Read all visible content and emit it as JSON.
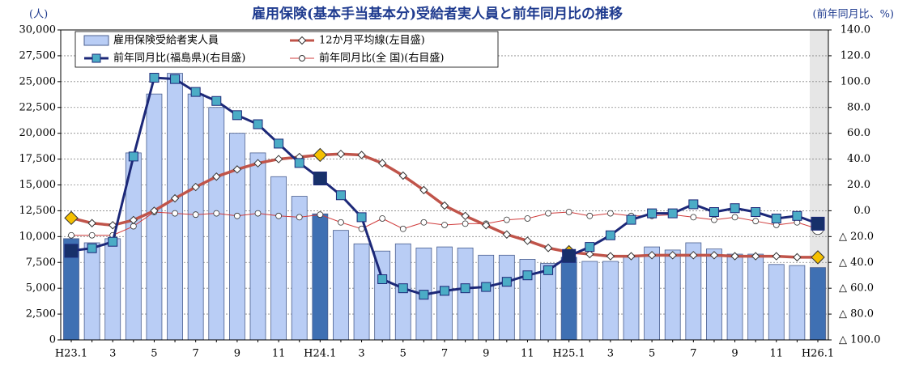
{
  "chart_data": {
    "type": "combo",
    "title": "雇用保険(基本手当基本分)受給者実人員と前年同月比の推移",
    "left_unit": "(人)",
    "right_unit": "(前年同月比、%)",
    "categories": [
      "H23.1",
      null,
      "3",
      null,
      "5",
      null,
      "7",
      null,
      "9",
      null,
      "11",
      null,
      "H24.1",
      null,
      "3",
      null,
      "5",
      null,
      "7",
      null,
      "9",
      null,
      "11",
      null,
      "H25.1",
      null,
      "3",
      null,
      "5",
      null,
      "7",
      null,
      "9",
      null,
      "11",
      null,
      "H26.1"
    ],
    "series": [
      {
        "name": "雇用保険受給者実人員",
        "kind": "bar",
        "axis": "y",
        "color": "#b9cdf5",
        "highlight_color": "#3f70b3",
        "values": [
          9800,
          9400,
          9800,
          18100,
          23800,
          25800,
          23800,
          22500,
          20000,
          18100,
          15800,
          13900,
          12200,
          10600,
          9300,
          8600,
          9300,
          8900,
          9000,
          8900,
          8200,
          8200,
          7800,
          7400,
          8000,
          7600,
          7600,
          8100,
          9000,
          8700,
          9400,
          8800,
          8300,
          8300,
          7300,
          7200,
          7000
        ]
      },
      {
        "name": "12か月平均線(左目盛)",
        "kind": "line",
        "marker": "diamond",
        "axis": "y",
        "color": "#c0544a",
        "marker_color": "#ffffff",
        "highlight_color": "#f5c000",
        "values": [
          11800,
          11300,
          11100,
          11600,
          12500,
          13700,
          14800,
          15800,
          16500,
          17100,
          17500,
          17700,
          17900,
          18000,
          17900,
          17100,
          15900,
          14500,
          13000,
          12000,
          11100,
          10200,
          9600,
          8900,
          8500,
          8300,
          8100,
          8100,
          8200,
          8200,
          8200,
          8200,
          8100,
          8100,
          8100,
          8000,
          8000
        ]
      },
      {
        "name": "前年同月比(福島県)(右目盛)",
        "kind": "line",
        "marker": "square",
        "axis": "y2",
        "color": "#1c2878",
        "marker_color": "#4bacc6",
        "highlight_color": "#17306a",
        "values": [
          -31,
          -29,
          -24,
          42,
          103,
          102,
          92,
          85,
          74,
          67,
          52,
          37,
          25,
          12,
          -5,
          -53,
          -60,
          -65,
          -62,
          -60,
          -59,
          -55,
          -50,
          -46,
          -35,
          -28,
          -19,
          -7,
          -2,
          -2,
          5,
          -1,
          2,
          -1,
          -6,
          -4,
          -10
        ]
      },
      {
        "name": "前年同月比(全 国)(右目盛)",
        "kind": "line",
        "marker": "circle",
        "axis": "y2",
        "color": "#d03c3c",
        "marker_color": "#ffffff",
        "highlight_color": "#ffffff",
        "values": [
          -19,
          -19,
          -19,
          -12,
          -1,
          -2,
          -3,
          -2,
          -4,
          -2,
          -4,
          -5,
          -3,
          -9,
          -14,
          -6,
          -14,
          -9,
          -11,
          -10,
          -10,
          -7,
          -6,
          -2,
          -1,
          -4,
          -2,
          -4,
          -4,
          -3,
          -5,
          -7,
          -5,
          -8,
          -11,
          -9,
          -14
        ]
      }
    ],
    "ylim": [
      0,
      30000
    ],
    "yticks": [
      0,
      {
        "value": 2500,
        "label": "2,500"
      },
      {
        "value": 5000,
        "label": "5,000"
      },
      {
        "value": 7500,
        "label": "7,500"
      },
      {
        "value": 10000,
        "label": "10,000"
      },
      {
        "value": 12500,
        "label": "12,500"
      },
      {
        "value": 15000,
        "label": "15,000"
      },
      {
        "value": 17500,
        "label": "17,500"
      },
      {
        "value": 20000,
        "label": "20,000"
      },
      {
        "value": 22500,
        "label": "22,500"
      },
      {
        "value": 25000,
        "label": "25,000"
      },
      {
        "value": 27500,
        "label": "27,500"
      },
      {
        "value": 30000,
        "label": "30,000"
      }
    ],
    "y2lim": [
      -100,
      140
    ],
    "y2ticks": [
      {
        "value": -100,
        "label": "△ 100.0"
      },
      {
        "value": -80,
        "label": "△ 80.0"
      },
      {
        "value": -60,
        "label": "△ 60.0"
      },
      {
        "value": -40,
        "label": "△ 40.0"
      },
      {
        "value": -20,
        "label": "△ 20.0"
      },
      {
        "value": 0,
        "label": "0.0"
      },
      {
        "value": 20,
        "label": "20.0"
      },
      {
        "value": 40,
        "label": "40.0"
      },
      {
        "value": 60,
        "label": "60.0"
      },
      {
        "value": 80,
        "label": "80.0"
      },
      {
        "value": 100,
        "label": "100.0"
      },
      {
        "value": 120,
        "label": "120.0"
      },
      {
        "value": 140,
        "label": "140.0"
      }
    ],
    "grid": true
  }
}
